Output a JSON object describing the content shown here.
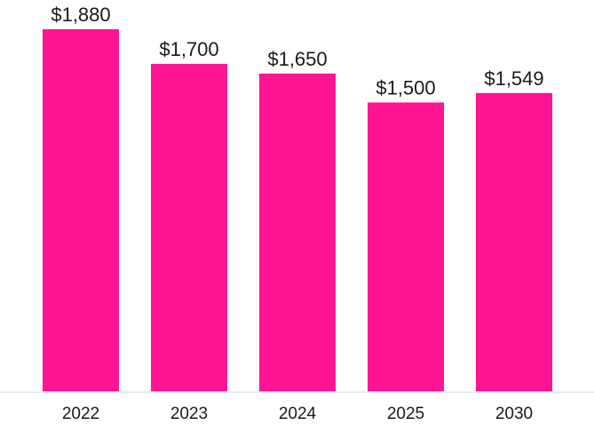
{
  "chart_data": {
    "type": "bar",
    "categories": [
      "2022",
      "2023",
      "2024",
      "2025",
      "2030"
    ],
    "values": [
      1880,
      1700,
      1650,
      1500,
      1549
    ],
    "data_labels": [
      "$1,880",
      "$1,700",
      "$1,650",
      "$1,500",
      "$1,549"
    ],
    "title": "",
    "xlabel": "",
    "ylabel": "",
    "ylim": [
      0,
      1880
    ],
    "grid": false,
    "legend": "none",
    "bar_color": "#ff1493",
    "baseline_color": "#e4eeee"
  }
}
